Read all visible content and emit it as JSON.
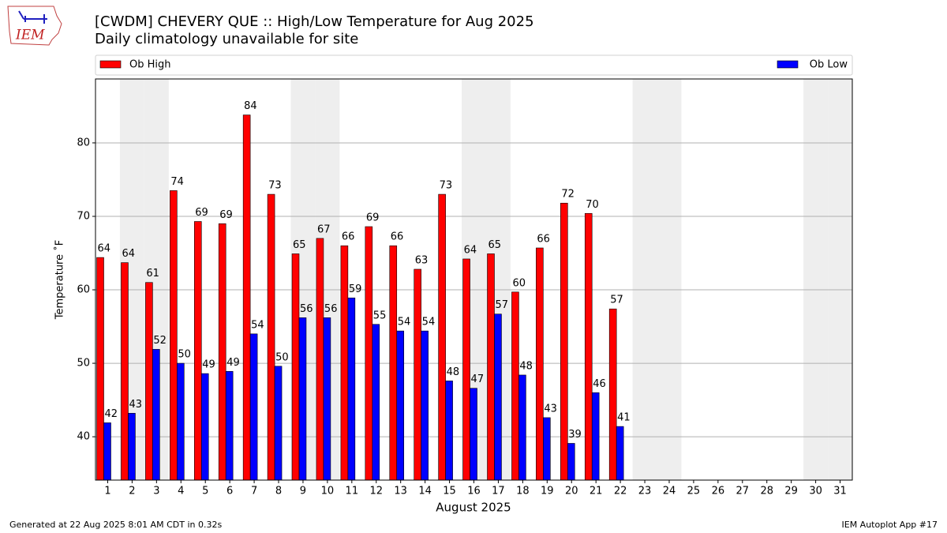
{
  "logo_text": "IEM",
  "footer_left": "Generated at 22 Aug 2025 8:01 AM CDT in 0.32s",
  "footer_right": "IEM Autoplot App #17",
  "chart_data": {
    "type": "bar",
    "title": "[CWDM] CHEVERY  QUE :: High/Low Temperature for Aug 2025",
    "subtitle": "Daily climatology unavailable for site",
    "xlabel": "August 2025",
    "ylabel": "Temperature ˚F",
    "x": [
      1,
      2,
      3,
      4,
      5,
      6,
      7,
      8,
      9,
      10,
      11,
      12,
      13,
      14,
      15,
      16,
      17,
      18,
      19,
      20,
      21,
      22,
      23,
      24,
      25,
      26,
      27,
      28,
      29,
      30,
      31
    ],
    "xlim": [
      0.5,
      31.5
    ],
    "ylim": [
      34.1,
      88.7
    ],
    "yticks": [
      40,
      50,
      60,
      70,
      80
    ],
    "grid": true,
    "shaded": [
      2,
      3,
      9,
      10,
      16,
      17,
      23,
      24,
      30,
      31
    ],
    "shade_color": "#eeeeee",
    "legend": "top",
    "series": [
      {
        "name": "Ob High",
        "color": "#ff0000",
        "values": [
          64.4,
          63.7,
          61.0,
          73.5,
          69.3,
          69.0,
          83.8,
          73.0,
          64.9,
          67.0,
          66.0,
          68.6,
          66.0,
          62.8,
          73.0,
          64.2,
          64.9,
          59.7,
          65.7,
          71.8,
          70.4,
          57.4,
          null,
          null,
          null,
          null,
          null,
          null,
          null,
          null,
          null
        ],
        "value_labels": [
          "64",
          "64",
          "61",
          "74",
          "69",
          "69",
          "84",
          "73",
          "65",
          "67",
          "66",
          "69",
          "66",
          "63",
          "73",
          "64",
          "65",
          "60",
          "66",
          "72",
          "70",
          "57",
          null,
          null,
          null,
          null,
          null,
          null,
          null,
          null,
          null
        ]
      },
      {
        "name": "Ob Low",
        "color": "#0000ff",
        "values": [
          41.9,
          43.2,
          51.9,
          50.0,
          48.6,
          48.9,
          54.0,
          49.6,
          56.2,
          56.2,
          58.9,
          55.3,
          54.4,
          54.4,
          47.6,
          46.6,
          56.7,
          48.4,
          42.6,
          39.1,
          46.0,
          41.4,
          null,
          null,
          null,
          null,
          null,
          null,
          null,
          null,
          null
        ],
        "value_labels": [
          "42",
          "43",
          "52",
          "50",
          "49",
          "49",
          "54",
          "50",
          "56",
          "56",
          "59",
          "55",
          "54",
          "54",
          "48",
          "47",
          "57",
          "48",
          "43",
          "39",
          "46",
          "41",
          null,
          null,
          null,
          null,
          null,
          null,
          null,
          null,
          null
        ]
      }
    ]
  }
}
